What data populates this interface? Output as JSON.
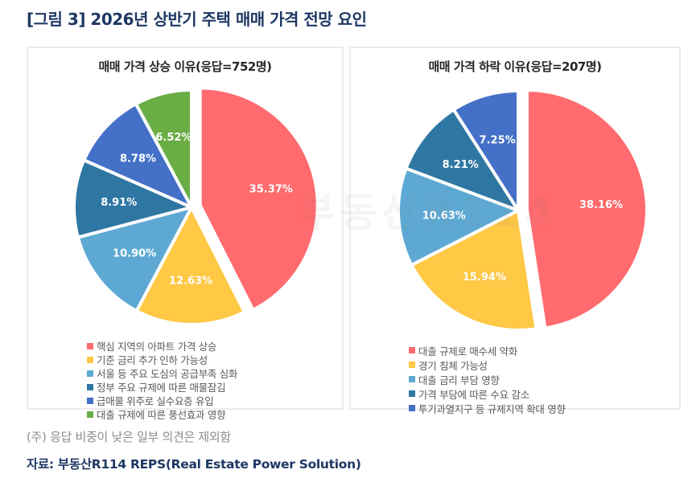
{
  "figure_title": "[그림 3] 2026년 상반기 주택 매매 가격 전망 요인",
  "watermark": "부동산R114",
  "note": "(주) 응답 비중이 낮은 일부 의견은 제외함",
  "source": "자료: 부동산R114 REPS(Real Estate Power Solution)",
  "colors": {
    "red": "#FF6B6E",
    "yellow": "#FFC845",
    "light_blue": "#5EA9D3",
    "steel_blue": "#2F77A3",
    "blue": "#4470C8",
    "green": "#6AAD45",
    "title_navy": "#1F3864"
  },
  "chart_data": [
    {
      "type": "pie",
      "title": "매매 가격 상승 이유(응답=752명)",
      "unit": "%",
      "start": "12 o'clock, clockwise",
      "exploded_slice": 0,
      "slices": [
        {
          "label": "핵심 지역의 아파트 가격 상승",
          "value": 35.37,
          "display": "35.37%",
          "color": "#FF6B6E"
        },
        {
          "label": "기준 금리 추가 인하 가능성",
          "value": 12.63,
          "display": "12.63%",
          "color": "#FFC845"
        },
        {
          "label": "서울 등 주요 도심의 공급부족 심화",
          "value": 10.9,
          "display": "10.90%",
          "color": "#5EA9D3"
        },
        {
          "label": "정부 주요 규제에 따른 매물잠김",
          "value": 8.91,
          "display": "8.91%",
          "color": "#2F77A3"
        },
        {
          "label": "급매물 위주로 실수요층 유입",
          "value": 8.78,
          "display": "8.78%",
          "color": "#4470C8"
        },
        {
          "label": "대출 규제에 따른 풍선효과 영향",
          "value": 6.52,
          "display": "6.52%",
          "color": "#6AAD45"
        }
      ],
      "legend_position": "bottom"
    },
    {
      "type": "pie",
      "title": "매매 가격 하락 이유(응답=207명)",
      "unit": "%",
      "start": "12 o'clock, clockwise",
      "exploded_slice": 0,
      "slices": [
        {
          "label": "대출 규제로 매수세 약화",
          "value": 38.16,
          "display": "38.16%",
          "color": "#FF6B6E"
        },
        {
          "label": "경기 침체 가능성",
          "value": 15.94,
          "display": "15.94%",
          "color": "#FFC845"
        },
        {
          "label": "대출 금리 부담 영향",
          "value": 10.63,
          "display": "10.63%",
          "color": "#5EA9D3"
        },
        {
          "label": "가격 부담에 따른 수요 감소",
          "value": 8.21,
          "display": "8.21%",
          "color": "#2F77A3"
        },
        {
          "label": "투기과열지구 등 규제지역 확대 영향",
          "value": 7.25,
          "display": "7.25%",
          "color": "#4470C8"
        }
      ],
      "legend_position": "bottom"
    }
  ]
}
